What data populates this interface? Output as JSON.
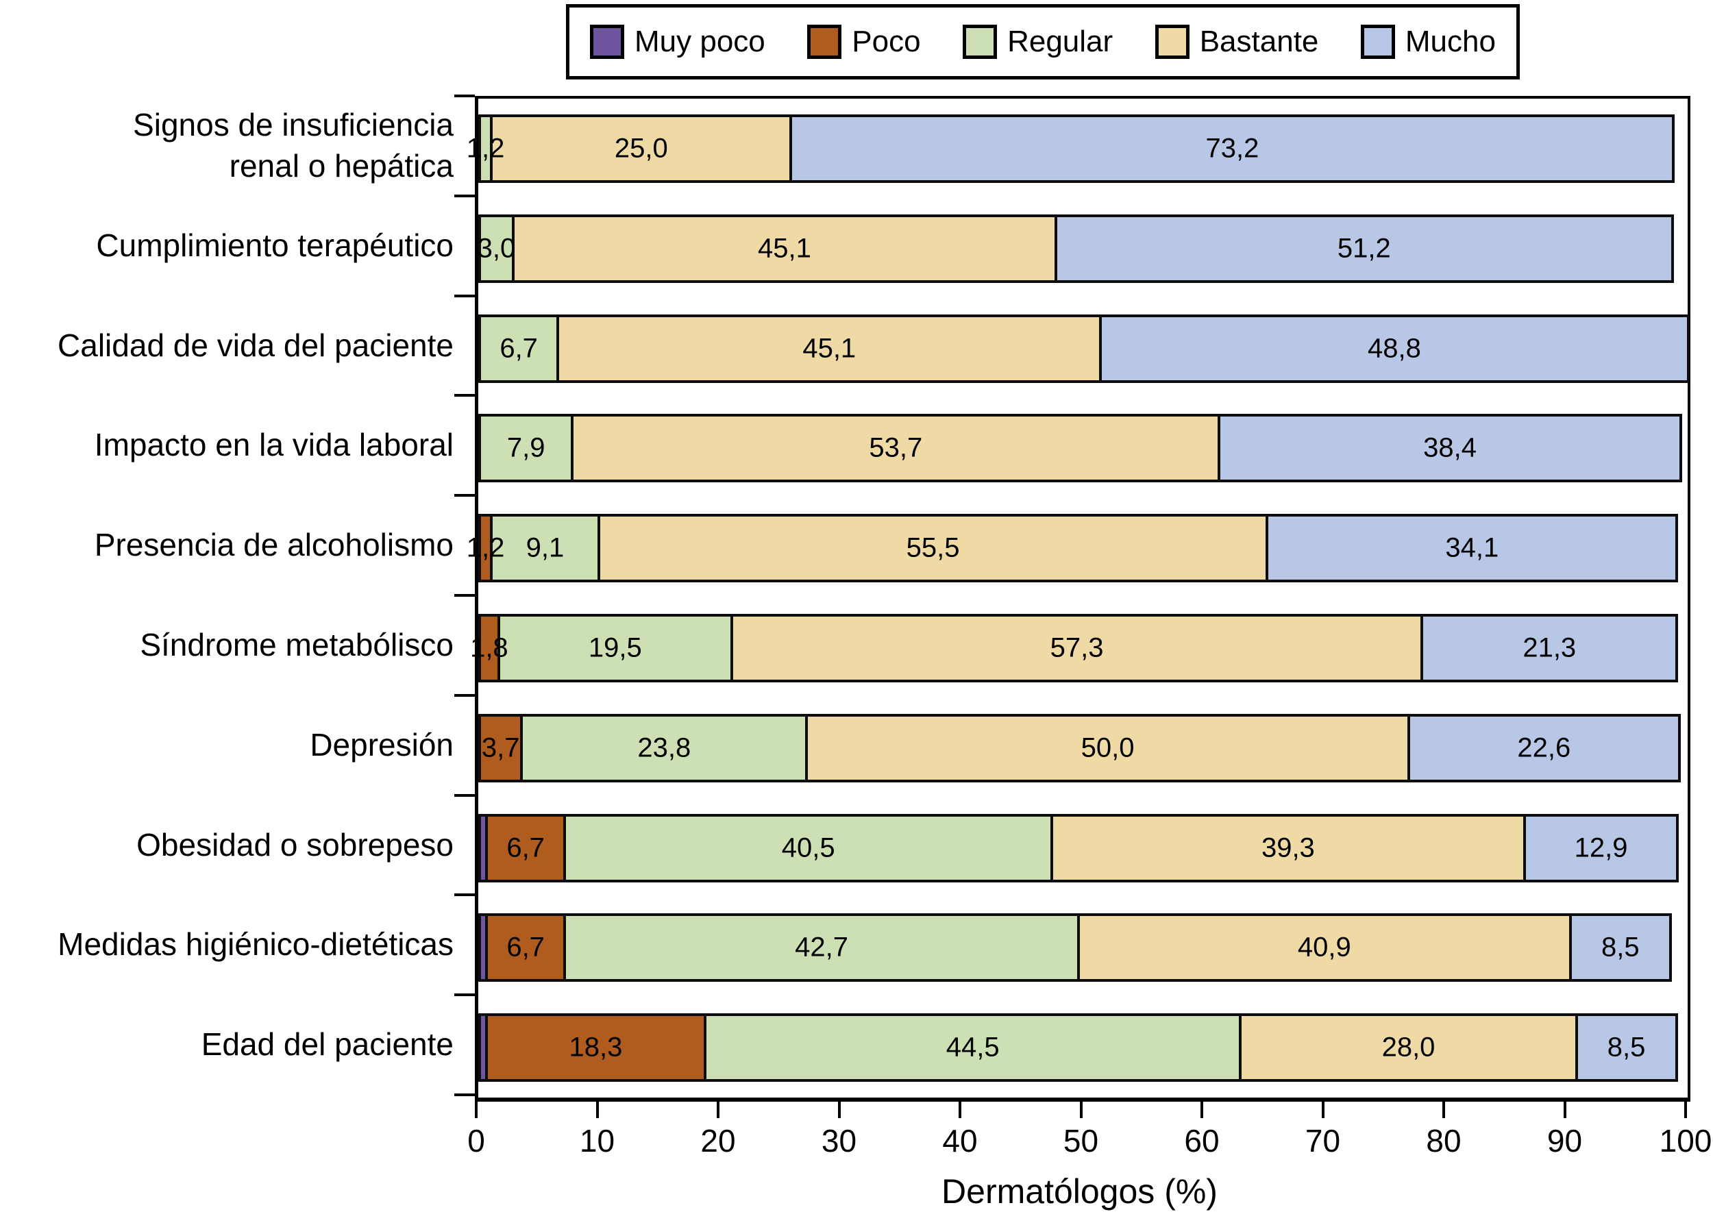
{
  "figure": {
    "x_axis_title": "Dermatólogos (%)",
    "x_tick_labels": [
      "0",
      "10",
      "20",
      "30",
      "40",
      "50",
      "60",
      "70",
      "80",
      "90",
      "100"
    ]
  },
  "chart_data": {
    "type": "bar",
    "orientation": "horizontal",
    "stacked": true,
    "title": "",
    "xlabel": "Dermatólogos (%)",
    "ylabel": "",
    "xlim": [
      0,
      100
    ],
    "xticks": [
      0,
      10,
      20,
      30,
      40,
      50,
      60,
      70,
      80,
      90,
      100
    ],
    "legend_position": "top",
    "grid": false,
    "categories": [
      "Signos de insuficiencia\nrenal o hepática",
      "Cumplimiento terapéutico",
      "Calidad de vida del paciente",
      "Impacto en la vida laboral",
      "Presencia de alcoholismo",
      "Síndrome metabólisco",
      "Depresión",
      "Obesidad o sobrepeso",
      "Medidas higiénico-dietéticas",
      "Edad del paciente"
    ],
    "series": [
      {
        "name": "Muy poco",
        "color": "#6f549f",
        "values": [
          0,
          0,
          0,
          0,
          0,
          0,
          0,
          0.6,
          0.6,
          0.6
        ],
        "labels": [
          "",
          "",
          "",
          "",
          "",
          "",
          "",
          "",
          "",
          ""
        ]
      },
      {
        "name": "Poco",
        "color": "#b05c1e",
        "values": [
          0,
          0,
          0,
          0,
          1.2,
          1.8,
          3.7,
          6.7,
          6.7,
          18.3
        ],
        "labels": [
          "",
          "",
          "",
          "",
          "1,2",
          "1,8",
          "3,7",
          "6,7",
          "6,7",
          "18,3"
        ]
      },
      {
        "name": "Regular",
        "color": "#cde0b4",
        "values": [
          1.2,
          3.0,
          6.7,
          7.9,
          9.1,
          19.5,
          23.8,
          40.5,
          42.7,
          44.5
        ],
        "labels": [
          "1,2",
          "3,0",
          "6,7",
          "7,9",
          "9,1",
          "19,5",
          "23,8",
          "40,5",
          "42,7",
          "44,5"
        ]
      },
      {
        "name": "Bastante",
        "color": "#efdaa5",
        "values": [
          25.0,
          45.1,
          45.1,
          53.7,
          55.5,
          57.3,
          50.0,
          39.3,
          40.9,
          28.0
        ],
        "labels": [
          "25,0",
          "45,1",
          "45,1",
          "53,7",
          "55,5",
          "57,3",
          "50,0",
          "39,3",
          "40,9",
          "28,0"
        ]
      },
      {
        "name": "Mucho",
        "color": "#b9c7e6",
        "values": [
          73.2,
          51.2,
          48.8,
          38.4,
          34.1,
          21.3,
          22.6,
          12.9,
          8.5,
          8.5
        ],
        "labels": [
          "73,2",
          "51,2",
          "48,8",
          "38,4",
          "34,1",
          "21,3",
          "22,6",
          "12,9",
          "8,5",
          "8,5"
        ]
      }
    ]
  }
}
